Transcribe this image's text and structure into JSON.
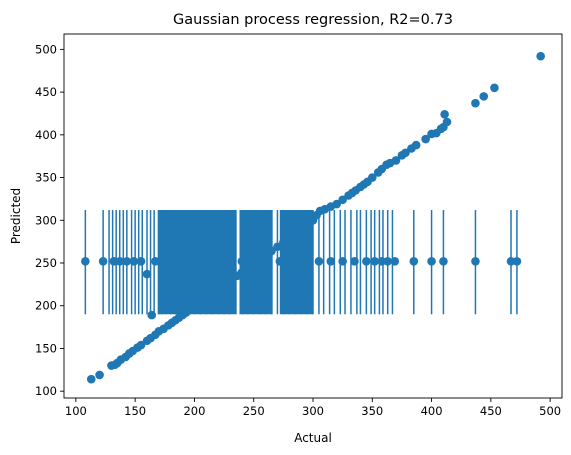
{
  "chart_data": {
    "type": "scatter",
    "title": "Gaussian process regression, R2=0.73",
    "xlabel": "Actual",
    "ylabel": "Predicted",
    "xlim": [
      90,
      510
    ],
    "ylim": [
      92,
      518
    ],
    "xticks": [
      100,
      150,
      200,
      250,
      300,
      350,
      400,
      450,
      500
    ],
    "yticks": [
      100,
      150,
      200,
      250,
      300,
      350,
      400,
      450,
      500
    ],
    "xtick_labels": [
      "100",
      "150",
      "200",
      "250",
      "300",
      "350",
      "400",
      "450",
      "500"
    ],
    "ytick_labels": [
      "100",
      "150",
      "200",
      "250",
      "300",
      "350",
      "400",
      "450",
      "500"
    ],
    "grid": false,
    "marker_color": "#1f77b4",
    "series": [
      {
        "values": [
          [
            113,
            114
          ],
          [
            120,
            119
          ],
          [
            130,
            130
          ],
          [
            133,
            131
          ],
          [
            135,
            133
          ],
          [
            138,
            137
          ],
          [
            142,
            140
          ],
          [
            145,
            144
          ],
          [
            148,
            147
          ],
          [
            152,
            151
          ],
          [
            155,
            154
          ],
          [
            160,
            159
          ],
          [
            163,
            162
          ],
          [
            167,
            166
          ],
          [
            170,
            170
          ],
          [
            174,
            173
          ],
          [
            178,
            177
          ],
          [
            181,
            180
          ],
          [
            184,
            183
          ],
          [
            187,
            186
          ],
          [
            190,
            189
          ],
          [
            193,
            192
          ],
          [
            196,
            195
          ],
          [
            199,
            198
          ],
          [
            202,
            201
          ],
          [
            205,
            204
          ],
          [
            208,
            207
          ],
          [
            212,
            211
          ],
          [
            215,
            214
          ],
          [
            218,
            217
          ],
          [
            221,
            220
          ],
          [
            225,
            224
          ],
          [
            228,
            227
          ],
          [
            232,
            231
          ],
          [
            236,
            235
          ],
          [
            240,
            239
          ],
          [
            245,
            244
          ],
          [
            250,
            249
          ],
          [
            255,
            254
          ],
          [
            260,
            259
          ],
          [
            265,
            264
          ],
          [
            270,
            269
          ],
          [
            275,
            274
          ],
          [
            280,
            279
          ],
          [
            285,
            284
          ],
          [
            290,
            289
          ],
          [
            295,
            294
          ],
          [
            300,
            300
          ],
          [
            303,
            306
          ],
          [
            306,
            311
          ],
          [
            310,
            313
          ],
          [
            315,
            316
          ],
          [
            320,
            319
          ],
          [
            325,
            324
          ],
          [
            330,
            329
          ],
          [
            333,
            332
          ],
          [
            336,
            335
          ],
          [
            340,
            339
          ],
          [
            343,
            342
          ],
          [
            346,
            345
          ],
          [
            350,
            350
          ],
          [
            355,
            356
          ],
          [
            358,
            360
          ],
          [
            362,
            365
          ],
          [
            365,
            367
          ],
          [
            370,
            370
          ],
          [
            375,
            376
          ],
          [
            378,
            379
          ],
          [
            383,
            384
          ],
          [
            387,
            388
          ],
          [
            395,
            395
          ],
          [
            400,
            401
          ],
          [
            404,
            402
          ],
          [
            408,
            407
          ],
          [
            410,
            409
          ],
          [
            411,
            424
          ],
          [
            413,
            415
          ],
          [
            437,
            437
          ],
          [
            444,
            445
          ],
          [
            453,
            455
          ],
          [
            492,
            492
          ],
          [
            108,
            252
          ],
          [
            123,
            252
          ],
          [
            132,
            252
          ],
          [
            137,
            252
          ],
          [
            143,
            252
          ],
          [
            149,
            252
          ],
          [
            155,
            252
          ],
          [
            160,
            237
          ],
          [
            164,
            189
          ],
          [
            167,
            252
          ],
          [
            178,
            252
          ],
          [
            186,
            252
          ],
          [
            196,
            252
          ],
          [
            210,
            252
          ],
          [
            220,
            252
          ],
          [
            230,
            252
          ],
          [
            240,
            252
          ],
          [
            250,
            252
          ],
          [
            262,
            252
          ],
          [
            272,
            252
          ],
          [
            283,
            252
          ],
          [
            295,
            252
          ],
          [
            305,
            252
          ],
          [
            315,
            252
          ],
          [
            325,
            252
          ],
          [
            335,
            252
          ],
          [
            345,
            252
          ],
          [
            352,
            252
          ],
          [
            358,
            252
          ],
          [
            363,
            252
          ],
          [
            369,
            252
          ],
          [
            385,
            252
          ],
          [
            400,
            252
          ],
          [
            410,
            252
          ],
          [
            437,
            252
          ],
          [
            467,
            252
          ],
          [
            472,
            252
          ]
        ]
      }
    ],
    "errorbar_x": [
      108,
      123,
      128,
      131,
      134,
      137,
      140,
      143,
      147,
      150,
      153,
      156,
      160,
      163,
      166,
      170,
      173,
      176,
      180,
      184,
      188,
      192,
      196,
      200,
      205,
      210,
      215,
      220,
      225,
      230,
      235,
      240,
      245,
      250,
      255,
      260,
      265,
      270,
      275,
      280,
      285,
      290,
      295,
      300,
      305,
      309,
      314,
      318,
      323,
      327,
      332,
      337,
      340,
      345,
      349,
      352,
      356,
      359,
      363,
      367,
      385,
      400,
      410,
      437,
      467,
      472
    ],
    "errorbar_dense_ranges": [
      [
        169,
        235
      ],
      [
        238,
        266
      ],
      [
        272,
        300
      ]
    ],
    "errorbar_ylow": 190,
    "errorbar_yhigh": 312
  }
}
